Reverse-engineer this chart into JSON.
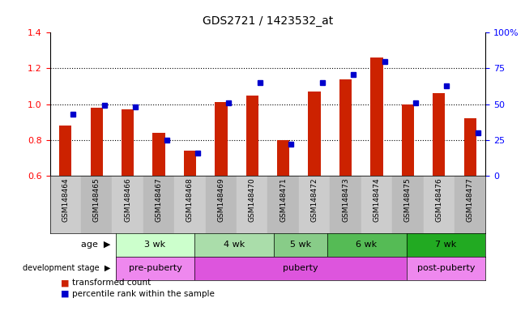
{
  "title": "GDS2721 / 1423532_at",
  "samples": [
    "GSM148464",
    "GSM148465",
    "GSM148466",
    "GSM148467",
    "GSM148468",
    "GSM148469",
    "GSM148470",
    "GSM148471",
    "GSM148472",
    "GSM148473",
    "GSM148474",
    "GSM148475",
    "GSM148476",
    "GSM148477"
  ],
  "red_values": [
    0.88,
    0.98,
    0.97,
    0.84,
    0.74,
    1.01,
    1.05,
    0.8,
    1.07,
    1.14,
    1.26,
    1.0,
    1.06,
    0.92
  ],
  "blue_percentiles": [
    43,
    49,
    48,
    25,
    16,
    51,
    65,
    22,
    65,
    71,
    80,
    51,
    63,
    30
  ],
  "ylim_left": [
    0.6,
    1.4
  ],
  "ylim_right": [
    0,
    100
  ],
  "yticks_left": [
    0.6,
    0.8,
    1.0,
    1.2,
    1.4
  ],
  "yticks_right": [
    0,
    25,
    50,
    75,
    100
  ],
  "ytick_labels_right": [
    "0",
    "25",
    "50",
    "75",
    "100%"
  ],
  "bar_color": "#cc2200",
  "dot_color": "#0000cc",
  "background_color": "#ffffff",
  "age_groups": [
    {
      "label": "3 wk",
      "start": 0,
      "end": 3,
      "color": "#ccffcc"
    },
    {
      "label": "4 wk",
      "start": 3,
      "end": 6,
      "color": "#aaddaa"
    },
    {
      "label": "5 wk",
      "start": 6,
      "end": 8,
      "color": "#88cc88"
    },
    {
      "label": "6 wk",
      "start": 8,
      "end": 11,
      "color": "#55bb55"
    },
    {
      "label": "7 wk",
      "start": 11,
      "end": 14,
      "color": "#22aa22"
    }
  ],
  "dev_groups": [
    {
      "label": "pre-puberty",
      "start": 0,
      "end": 3,
      "color": "#ee88ee"
    },
    {
      "label": "puberty",
      "start": 3,
      "end": 11,
      "color": "#dd55dd"
    },
    {
      "label": "post-puberty",
      "start": 11,
      "end": 14,
      "color": "#ee88ee"
    }
  ],
  "legend_red": "transformed count",
  "legend_blue": "percentile rank within the sample",
  "label_age": "age",
  "label_dev": "development stage",
  "bar_width": 0.4
}
